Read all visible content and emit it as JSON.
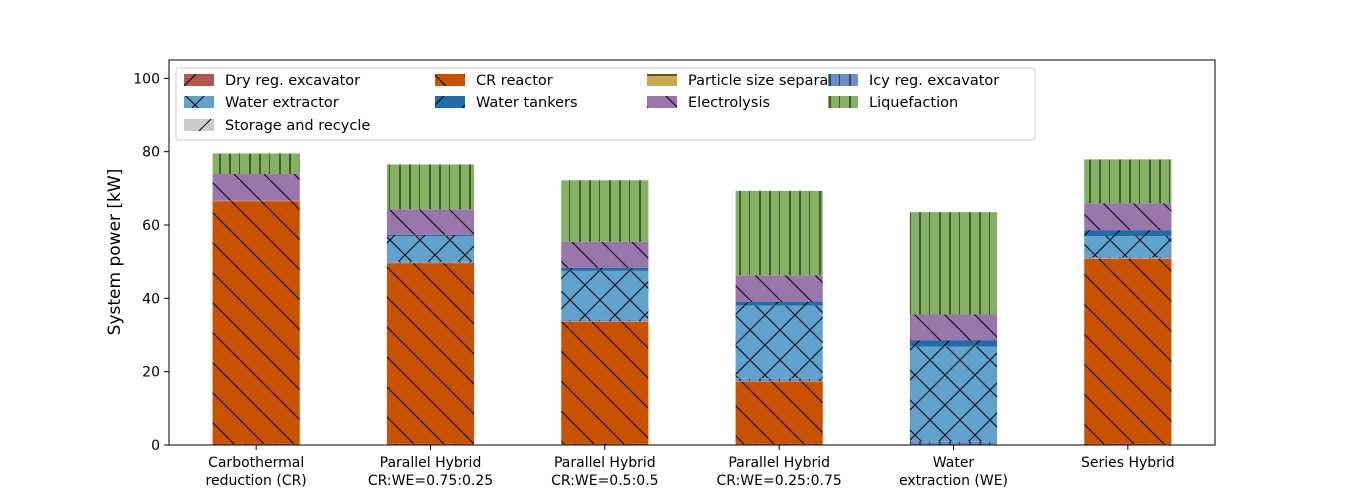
{
  "chart_data": {
    "type": "bar",
    "stacked": true,
    "title": "",
    "xlabel": "",
    "ylabel": "System power [kW]",
    "ylim": [
      0,
      105
    ],
    "yticks": [
      0,
      20,
      40,
      60,
      80,
      100
    ],
    "grid": false,
    "legend_position": "top-left",
    "legend_columns": 4,
    "categories": [
      [
        "Carbothermal",
        "reduction (CR)"
      ],
      [
        "Parallel Hybrid",
        "CR:WE=0.75:0.25"
      ],
      [
        "Parallel Hybrid",
        "CR:WE=0.5:0.5"
      ],
      [
        "Parallel Hybrid",
        "CR:WE=0.25:0.75"
      ],
      [
        "Water",
        "extraction (WE)"
      ],
      [
        "Series Hybrid"
      ]
    ],
    "series": [
      {
        "name": "Dry reg. excavator",
        "color": "#b5554d",
        "hatch": "diag-forward",
        "values": [
          0.3,
          0.3,
          0.3,
          0.3,
          0.0,
          0.3
        ]
      },
      {
        "name": "CR reactor",
        "color": "#c85200",
        "hatch": "diag-back",
        "values": [
          66.2,
          49.3,
          33.3,
          17.0,
          0.0,
          50.5
        ]
      },
      {
        "name": "Particle size separators",
        "color": "#c9a94b",
        "hatch": "horizontal",
        "values": [
          0.1,
          0.1,
          0.1,
          0.1,
          0.0,
          0.1
        ]
      },
      {
        "name": "Icy reg. excavator",
        "color": "#6a8fc5",
        "hatch": "vertical",
        "values": [
          0.0,
          0.3,
          0.5,
          0.8,
          1.0,
          0.3
        ]
      },
      {
        "name": "Water extractor",
        "color": "#5fa2ce",
        "hatch": "cross",
        "values": [
          0.0,
          7.0,
          13.3,
          19.8,
          25.8,
          5.8
        ]
      },
      {
        "name": "Water tankers",
        "color": "#1f6ea8",
        "hatch": "diag-forward",
        "values": [
          0.0,
          0.3,
          0.8,
          1.0,
          1.7,
          1.6
        ]
      },
      {
        "name": "Electrolysis",
        "color": "#9b76ad",
        "hatch": "diag-back",
        "values": [
          7.3,
          7.0,
          7.1,
          7.3,
          7.1,
          7.3
        ]
      },
      {
        "name": "Liquefaction",
        "color": "#84b262",
        "hatch": "vertical",
        "values": [
          5.6,
          12.2,
          16.8,
          23.0,
          27.9,
          12.0
        ]
      },
      {
        "name": "Storage and recycle",
        "color": "#cccccc",
        "hatch": "diag-forward",
        "values": [
          0.0,
          0.0,
          0.0,
          0.0,
          0.0,
          0.0
        ]
      }
    ]
  }
}
